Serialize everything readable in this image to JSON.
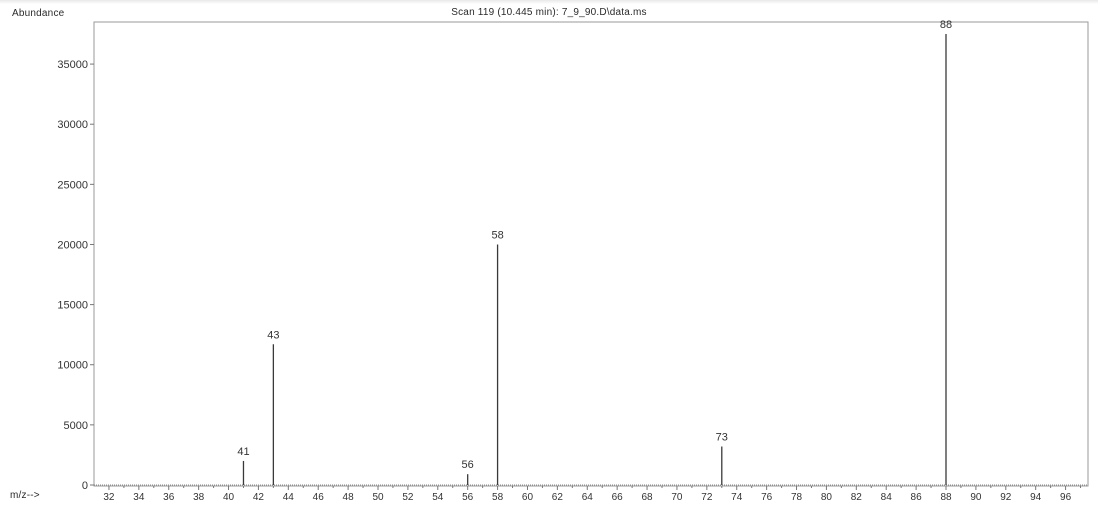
{
  "chart_data": {
    "type": "bar",
    "title": "Scan 119 (10.445 min): 7_9_90.D\\data.ms",
    "ylabel": "Abundance",
    "xlabel": "m/z-->",
    "xlim": [
      31,
      97.5
    ],
    "ylim": [
      0,
      38000
    ],
    "x_ticks": [
      32,
      34,
      36,
      38,
      40,
      42,
      44,
      46,
      48,
      50,
      52,
      54,
      56,
      58,
      60,
      62,
      64,
      66,
      68,
      70,
      72,
      74,
      76,
      78,
      80,
      82,
      84,
      86,
      88,
      90,
      92,
      94,
      96
    ],
    "y_ticks": [
      0,
      5000,
      10000,
      15000,
      20000,
      25000,
      30000,
      35000
    ],
    "grid": false,
    "peaks": [
      {
        "mz": 41,
        "abundance": 2000,
        "label": "41"
      },
      {
        "mz": 43,
        "abundance": 11700,
        "label": "43"
      },
      {
        "mz": 56,
        "abundance": 900,
        "label": "56"
      },
      {
        "mz": 58,
        "abundance": 20000,
        "label": "58"
      },
      {
        "mz": 73,
        "abundance": 3200,
        "label": "73"
      },
      {
        "mz": 88,
        "abundance": 37500,
        "label": "88"
      }
    ]
  }
}
